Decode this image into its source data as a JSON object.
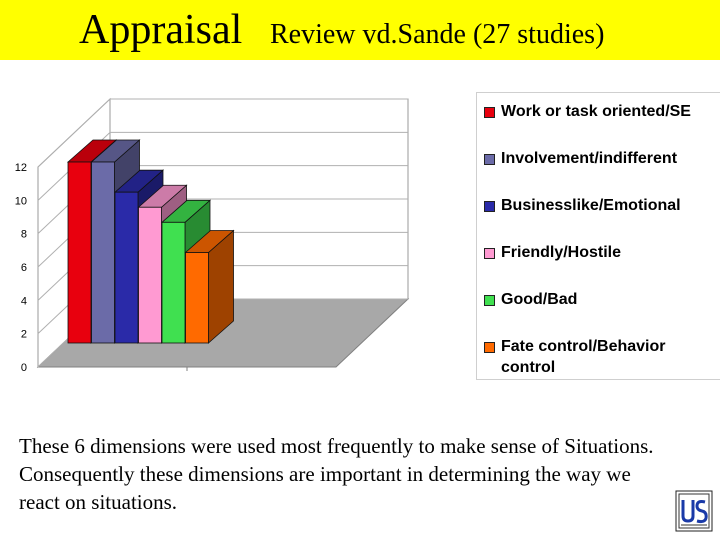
{
  "header": {
    "title": "Appraisal",
    "subtitle": "Review vd.Sande (27 studies)",
    "background": "#ffff00"
  },
  "chart_data": {
    "type": "bar",
    "style": "3d",
    "categories": [
      "Work or task oriented/SE",
      "Involvement/indifferent",
      "Businesslike/Emotional",
      "Friendly/Hostile",
      "Good/Bad",
      "Fate control/Behavior control"
    ],
    "values": [
      12,
      12,
      10,
      9,
      8,
      6
    ],
    "colors": [
      "#e8000e",
      "#6b6ba8",
      "#2a2aa8",
      "#ff9ad2",
      "#40e050",
      "#ff6a00"
    ],
    "ylim": [
      0,
      12
    ],
    "yticks": [
      "0",
      "2",
      "4",
      "6",
      "8",
      "10",
      "12"
    ],
    "grid": true,
    "legend": "right"
  },
  "legend": {
    "items": [
      {
        "label": "Work or task oriented/SE",
        "color": "#e8000e"
      },
      {
        "label": "Involvement/indifferent",
        "color": "#6b6ba8"
      },
      {
        "label": "Businesslike/Emotional",
        "color": "#2a2aa8"
      },
      {
        "label": "Friendly/Hostile",
        "color": "#ff9ad2"
      },
      {
        "label": "Good/Bad",
        "color": "#40e050"
      },
      {
        "label": "Fate control/Behavior control",
        "color": "#ff6a00"
      }
    ]
  },
  "caption": "These 6 dimensions were used most frequently to make sense of Situations. Consequently these dimensions are important in determining the way we react on situations."
}
